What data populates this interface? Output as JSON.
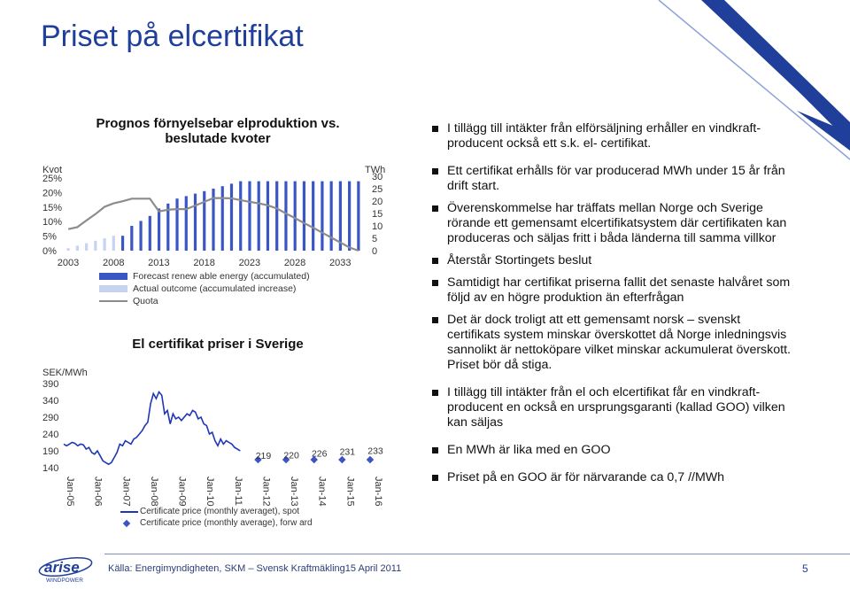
{
  "page": {
    "title": "Priset på elcertifikat",
    "footer_source": "Källa: Energimyndigheten, SKM – Svensk Kraftmäkling15 April 2011",
    "page_number": "5",
    "logo": {
      "word": "arise",
      "sub": "WINDPOWER",
      "icon": "arise-windpower-logo"
    },
    "colors": {
      "title": "#1f3f9a",
      "forecast_bar": "#3a55c4",
      "actual_bar": "#c8d3f2",
      "quota_line": "#8c8c8c",
      "spot_line": "#1e36b8"
    }
  },
  "bullets": [
    "I tillägg till intäkter från elförsäljning erhåller en vindkraft-producent också ett s.k. el- certifikat.",
    "Ett certifikat erhålls för var producerad MWh under 15 år från drift start.",
    "Överenskommelse har träffats mellan Norge och Sverige rörande ett gemensamt elcertifikatsystem där certifikaten kan produceras och säljas fritt i båda länderna till samma villkor",
    "Återstår Stortingets beslut",
    "Samtidigt har certifikat priserna fallit det senaste halvåret som följd av en högre produktion än efterfrågan",
    "Det är dock troligt att ett gemensamt norsk – svenskt certifikats system minskar överskottet då Norge inledningsvis sannolikt är nettoköpare vilket minskar ackumulerat överskott. Priset bör då stiga.",
    "I tillägg till intäkter från el och elcertifikat får en vindkraft-producent en också en ursprungsgaranti (kallad GOO) vilken kan säljas",
    "En MWh är lika med en GOO",
    "Priset på en GOO är för närvarande ca 0,7 //MWh"
  ],
  "chart_data": [
    {
      "type": "bar",
      "title": "Prognos förnyelsebar elproduktion vs. beslutade kvoter",
      "left_axis_title": "Kvot",
      "right_axis_title": "TWh",
      "left_ticks": [
        "25%",
        "20%",
        "15%",
        "10%",
        "5%",
        "0%"
      ],
      "right_ticks": [
        "30",
        "25",
        "20",
        "15",
        "10",
        "5",
        "0"
      ],
      "x_ticks": [
        "2003",
        "2008",
        "2013",
        "2018",
        "2023",
        "2028",
        "2033"
      ],
      "ylim_left": [
        0,
        0.25
      ],
      "ylim_right": [
        0,
        30
      ],
      "x": [
        2003,
        2004,
        2005,
        2006,
        2007,
        2008,
        2009,
        2010,
        2011,
        2012,
        2013,
        2014,
        2015,
        2016,
        2017,
        2018,
        2019,
        2020,
        2021,
        2022,
        2023,
        2024,
        2025,
        2026,
        2027,
        2028,
        2029,
        2030,
        2031,
        2032,
        2033,
        2034,
        2035
      ],
      "series": [
        {
          "name": "Forecast renewable energy (accumulated)",
          "kind": "bar",
          "values": [
            0,
            0,
            0,
            0,
            0,
            0,
            6,
            10,
            12,
            14,
            17,
            19,
            21,
            22,
            23,
            24,
            25,
            26,
            27,
            28,
            28,
            28,
            28,
            28,
            28,
            28,
            28,
            28,
            28,
            28,
            28,
            28,
            28
          ]
        },
        {
          "name": "Actual outcome (accumulated increase)",
          "kind": "bar",
          "values": [
            1,
            2,
            3,
            4,
            5,
            6,
            0,
            0,
            0,
            0,
            0,
            0,
            0,
            0,
            0,
            0,
            0,
            0,
            0,
            0,
            0,
            0,
            0,
            0,
            0,
            0,
            0,
            0,
            0,
            0,
            0,
            0,
            0
          ]
        },
        {
          "name": "Quota",
          "kind": "line",
          "axis": "left",
          "values": [
            0.074,
            0.081,
            0.104,
            0.126,
            0.151,
            0.163,
            0.17,
            0.179,
            0.179,
            0.179,
            0.135,
            0.141,
            0.143,
            0.143,
            0.155,
            0.168,
            0.181,
            0.181,
            0.18,
            0.174,
            0.168,
            0.163,
            0.156,
            0.145,
            0.128,
            0.112,
            0.095,
            0.079,
            0.062,
            0.045,
            0.028,
            0.011,
            0.0
          ]
        }
      ],
      "legend": [
        "Forecast renew able energy (accumulated)",
        "Actual outcome (accumulated increase)",
        "Quota"
      ]
    },
    {
      "type": "line",
      "title": "El certifikat priser i Sverige",
      "ylabel": "SEK/MWh",
      "yticks": [
        "390",
        "340",
        "290",
        "240",
        "190",
        "140"
      ],
      "ylim": [
        140,
        390
      ],
      "x_ticks": [
        "Jan-05",
        "Jan-06",
        "Jan-07",
        "Jan-08",
        "Jan-09",
        "Jan-10",
        "Jan-11",
        "Jan-12",
        "Jan-13",
        "Jan-14",
        "Jan-15",
        "Jan-16"
      ],
      "series": [
        {
          "name": "Certificate price (monthly averaget), spot",
          "x": [
            2005.0,
            2005.1,
            2005.2,
            2005.3,
            2005.4,
            2005.5,
            2005.6,
            2005.7,
            2005.8,
            2005.9,
            2006.0,
            2006.1,
            2006.2,
            2006.3,
            2006.4,
            2006.5,
            2006.6,
            2006.7,
            2006.8,
            2006.9,
            2007.0,
            2007.1,
            2007.2,
            2007.3,
            2007.4,
            2007.5,
            2007.6,
            2007.7,
            2007.8,
            2007.9,
            2008.0,
            2008.1,
            2008.2,
            2008.3,
            2008.4,
            2008.5,
            2008.6,
            2008.7,
            2008.8,
            2008.9,
            2009.0,
            2009.1,
            2009.2,
            2009.3,
            2009.4,
            2009.5,
            2009.6,
            2009.7,
            2009.8,
            2009.9,
            2010.0,
            2010.1,
            2010.2,
            2010.3,
            2010.4,
            2010.5,
            2010.6,
            2010.7,
            2010.8,
            2010.9,
            2011.0,
            2011.1,
            2011.2,
            2011.3
          ],
          "y": [
            210,
            205,
            210,
            215,
            212,
            205,
            210,
            208,
            195,
            200,
            185,
            180,
            190,
            175,
            160,
            155,
            150,
            155,
            170,
            185,
            210,
            205,
            220,
            215,
            210,
            225,
            230,
            240,
            250,
            265,
            275,
            330,
            360,
            345,
            365,
            355,
            300,
            310,
            270,
            300,
            285,
            290,
            280,
            290,
            300,
            295,
            310,
            305,
            285,
            290,
            270,
            265,
            240,
            245,
            220,
            205,
            225,
            210,
            220,
            215,
            210,
            200,
            195,
            190
          ]
        }
      ],
      "targets": {
        "name": "Certificate price (monthly average), forw ard",
        "x": [
          "Jan-12",
          "Jan-13",
          "Jan-14",
          "Jan-15",
          "Jan-16"
        ],
        "labels": [
          "219",
          "220",
          "226",
          "231",
          "233"
        ],
        "values": [
          219,
          220,
          226,
          231,
          233
        ]
      }
    }
  ]
}
